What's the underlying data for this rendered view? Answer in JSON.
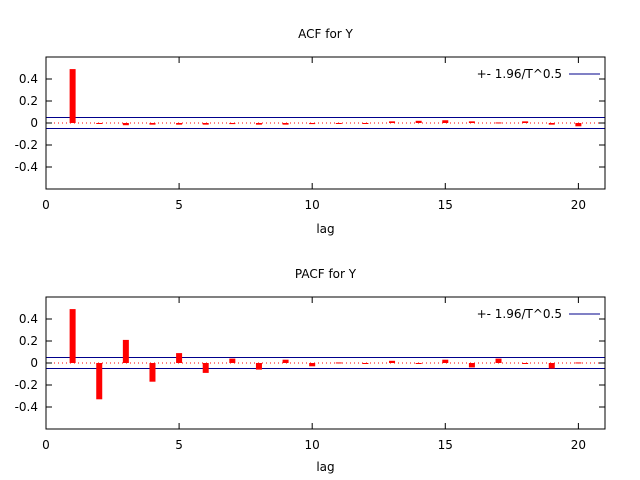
{
  "chart_data": [
    {
      "type": "bar",
      "title": "ACF for Y",
      "xlabel": "lag",
      "ylabel": "",
      "xlim": [
        0,
        21
      ],
      "ylim": [
        -0.6,
        0.6
      ],
      "xticks": [
        "0",
        "5",
        "10",
        "15",
        "20"
      ],
      "yticks": [
        "0.4",
        "0.2",
        "0",
        "-0.2",
        "-0.4"
      ],
      "legend": "+- 1.96/T^0.5",
      "legend_position": "top-right",
      "band": 0.05,
      "x": [
        1,
        2,
        3,
        4,
        5,
        6,
        7,
        8,
        9,
        10,
        11,
        12,
        13,
        14,
        15,
        16,
        17,
        18,
        19,
        20
      ],
      "values": [
        0.49,
        0.0,
        -0.02,
        -0.015,
        -0.015,
        -0.015,
        -0.01,
        -0.015,
        -0.015,
        -0.01,
        -0.005,
        -0.005,
        0.015,
        0.02,
        0.025,
        0.015,
        0.005,
        0.015,
        -0.015,
        -0.03
      ],
      "colors": {
        "bars": "#ff0000",
        "band": "#00008b",
        "zero": "#ff0000"
      }
    },
    {
      "type": "bar",
      "title": "PACF for Y",
      "xlabel": "lag",
      "ylabel": "",
      "xlim": [
        0,
        21
      ],
      "ylim": [
        -0.6,
        0.6
      ],
      "xticks": [
        "0",
        "5",
        "10",
        "15",
        "20"
      ],
      "yticks": [
        "0.4",
        "0.2",
        "0",
        "-0.2",
        "-0.4"
      ],
      "legend": "+- 1.96/T^0.5",
      "legend_position": "top-right",
      "band": 0.05,
      "x": [
        1,
        2,
        3,
        4,
        5,
        6,
        7,
        8,
        9,
        10,
        11,
        12,
        13,
        14,
        15,
        16,
        17,
        18,
        19,
        20
      ],
      "values": [
        0.49,
        -0.33,
        0.21,
        -0.17,
        0.09,
        -0.09,
        0.04,
        -0.06,
        0.03,
        -0.03,
        0.005,
        0.0,
        0.02,
        0.0,
        0.03,
        -0.04,
        0.04,
        -0.005,
        -0.05,
        0.005
      ],
      "colors": {
        "bars": "#ff0000",
        "band": "#00008b",
        "zero": "#ff0000"
      }
    }
  ]
}
